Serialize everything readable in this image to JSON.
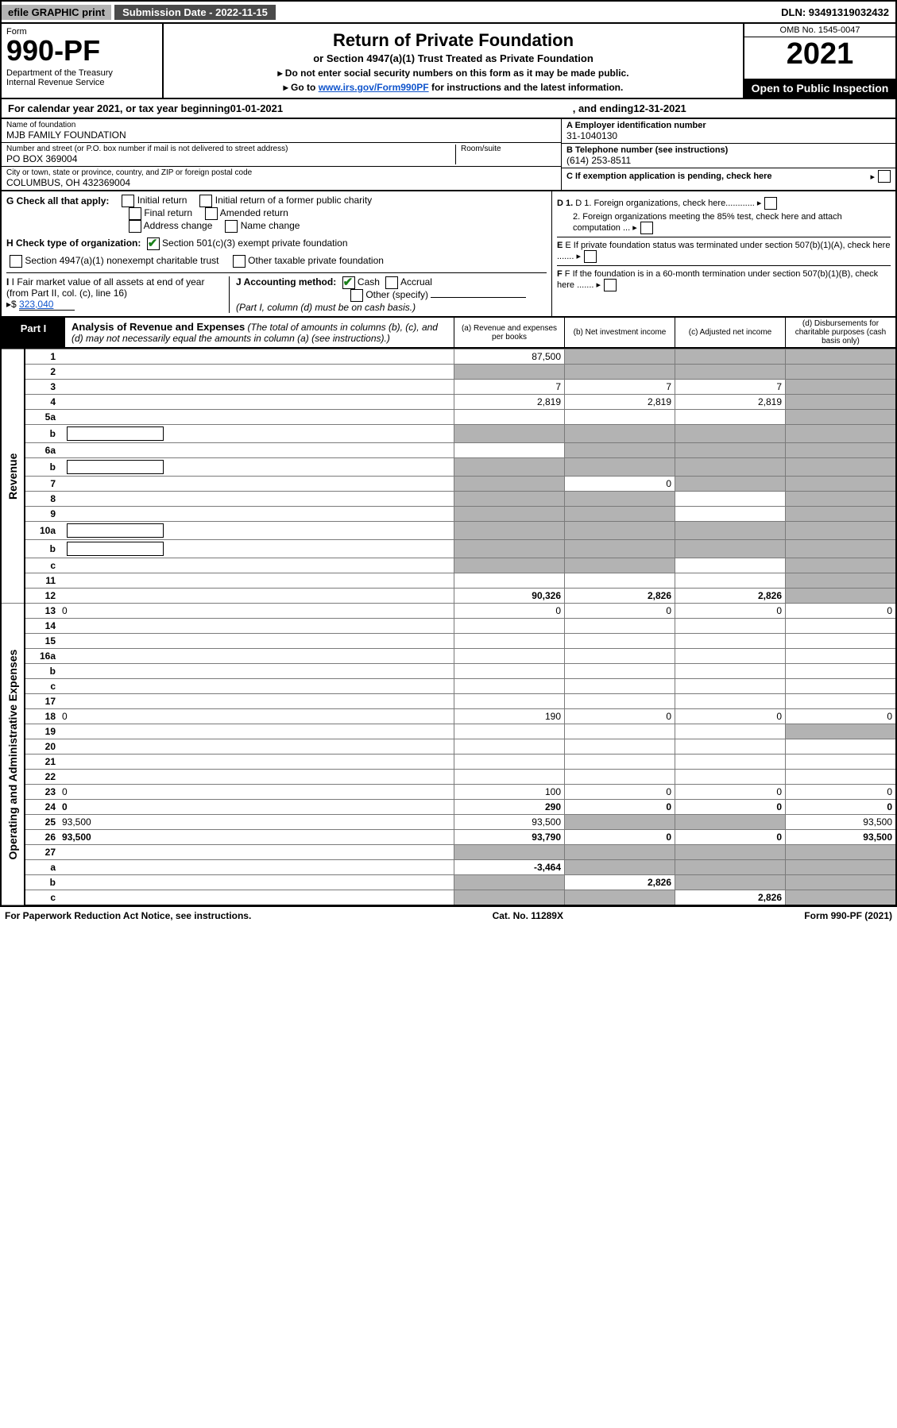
{
  "topbar": {
    "efile": "efile GRAPHIC print",
    "submission": "Submission Date - 2022-11-15",
    "dln": "DLN: 93491319032432"
  },
  "header": {
    "form_label": "Form",
    "form_number": "990-PF",
    "dept": "Department of the Treasury\nInternal Revenue Service",
    "title": "Return of Private Foundation",
    "subtitle": "or Section 4947(a)(1) Trust Treated as Private Foundation",
    "instr1": "▸ Do not enter social security numbers on this form as it may be made public.",
    "instr2_pre": "▸ Go to ",
    "instr2_link": "www.irs.gov/Form990PF",
    "instr2_post": " for instructions and the latest information.",
    "omb": "OMB No. 1545-0047",
    "year": "2021",
    "otp": "Open to Public Inspection"
  },
  "calendar": {
    "pre": "For calendar year 2021, or tax year beginning ",
    "begin": "01-01-2021",
    "mid": " , and ending ",
    "end": "12-31-2021"
  },
  "id": {
    "name_label": "Name of foundation",
    "name": "MJB FAMILY FOUNDATION",
    "addr_label": "Number and street (or P.O. box number if mail is not delivered to street address)",
    "addr": "PO BOX 369004",
    "room_label": "Room/suite",
    "room": "",
    "city_label": "City or town, state or province, country, and ZIP or foreign postal code",
    "city": "COLUMBUS, OH  432369004",
    "a_label": "A Employer identification number",
    "a_val": "31-1040130",
    "b_label": "B Telephone number (see instructions)",
    "b_val": "(614) 253-8511",
    "c_label": "C If exemption application is pending, check here"
  },
  "checks": {
    "g": "G Check all that apply:",
    "g_items": [
      "Initial return",
      "Initial return of a former public charity",
      "Final return",
      "Amended return",
      "Address change",
      "Name change"
    ],
    "h": "H Check type of organization:",
    "h1": "Section 501(c)(3) exempt private foundation",
    "h2": "Section 4947(a)(1) nonexempt charitable trust",
    "h3": "Other taxable private foundation",
    "i_label": "I Fair market value of all assets at end of year (from Part II, col. (c), line 16)",
    "i_arrow": "▸$",
    "i_val": "323,040",
    "j_label": "J Accounting method:",
    "j_cash": "Cash",
    "j_accrual": "Accrual",
    "j_other": "Other (specify)",
    "j_note": "(Part I, column (d) must be on cash basis.)",
    "d1": "D 1. Foreign organizations, check here............",
    "d2": "2. Foreign organizations meeting the 85% test, check here and attach computation ...",
    "e": "E  If private foundation status was terminated under section 507(b)(1)(A), check here .......",
    "f": "F  If the foundation is in a 60-month termination under section 507(b)(1)(B), check here ......."
  },
  "part1": {
    "tag": "Part I",
    "title": "Analysis of Revenue and Expenses",
    "title_note": " (The total of amounts in columns (b), (c), and (d) may not necessarily equal the amounts in column (a) (see instructions).)",
    "col_a": "(a) Revenue and expenses per books",
    "col_b": "(b) Net investment income",
    "col_c": "(c) Adjusted net income",
    "col_d": "(d) Disbursements for charitable purposes (cash basis only)",
    "side_rev": "Revenue",
    "side_exp": "Operating and Administrative Expenses"
  },
  "rows": {
    "r1": {
      "n": "1",
      "d": "",
      "a": "87,500",
      "b": "",
      "c": "",
      "sb": true,
      "sc": true,
      "sd": true
    },
    "r2": {
      "n": "2",
      "d": "",
      "a": "",
      "b": "",
      "c": "",
      "sa": true,
      "sb": true,
      "sc": true,
      "sd": true
    },
    "r3": {
      "n": "3",
      "d": "",
      "a": "7",
      "b": "7",
      "c": "7",
      "sd": true
    },
    "r4": {
      "n": "4",
      "d": "",
      "a": "2,819",
      "b": "2,819",
      "c": "2,819",
      "sd": true
    },
    "r5a": {
      "n": "5a",
      "d": "",
      "a": "",
      "b": "",
      "c": "",
      "sd": true
    },
    "r5b": {
      "n": "b",
      "d": "",
      "a": "",
      "b": "",
      "c": "",
      "sa": true,
      "sb": true,
      "sc": true,
      "sd": true,
      "inl": true
    },
    "r6a": {
      "n": "6a",
      "d": "",
      "a": "",
      "b": "",
      "c": "",
      "sb": true,
      "sc": true,
      "sd": true
    },
    "r6b": {
      "n": "b",
      "d": "",
      "a": "",
      "b": "",
      "c": "",
      "sa": true,
      "sb": true,
      "sc": true,
      "sd": true,
      "inl": true
    },
    "r7": {
      "n": "7",
      "d": "",
      "a": "",
      "b": "0",
      "c": "",
      "sa": true,
      "sc": true,
      "sd": true
    },
    "r8": {
      "n": "8",
      "d": "",
      "a": "",
      "b": "",
      "c": "",
      "sa": true,
      "sb": true,
      "sd": true
    },
    "r9": {
      "n": "9",
      "d": "",
      "a": "",
      "b": "",
      "c": "",
      "sa": true,
      "sb": true,
      "sd": true
    },
    "r10a": {
      "n": "10a",
      "d": "",
      "a": "",
      "b": "",
      "c": "",
      "sa": true,
      "sb": true,
      "sc": true,
      "sd": true,
      "inl": true
    },
    "r10b": {
      "n": "b",
      "d": "",
      "a": "",
      "b": "",
      "c": "",
      "sa": true,
      "sb": true,
      "sc": true,
      "sd": true,
      "inl": true
    },
    "r10c": {
      "n": "c",
      "d": "",
      "a": "",
      "b": "",
      "c": "",
      "sa": true,
      "sb": true,
      "sd": true
    },
    "r11": {
      "n": "11",
      "d": "",
      "a": "",
      "b": "",
      "c": "",
      "sd": true
    },
    "r12": {
      "n": "12",
      "d": "",
      "a": "90,326",
      "b": "2,826",
      "c": "2,826",
      "bold": true,
      "sd": true
    },
    "r13": {
      "n": "13",
      "d": "0",
      "a": "0",
      "b": "0",
      "c": "0"
    },
    "r14": {
      "n": "14",
      "d": "",
      "a": "",
      "b": "",
      "c": ""
    },
    "r15": {
      "n": "15",
      "d": "",
      "a": "",
      "b": "",
      "c": ""
    },
    "r16a": {
      "n": "16a",
      "d": "",
      "a": "",
      "b": "",
      "c": ""
    },
    "r16b": {
      "n": "b",
      "d": "",
      "a": "",
      "b": "",
      "c": ""
    },
    "r16c": {
      "n": "c",
      "d": "",
      "a": "",
      "b": "",
      "c": ""
    },
    "r17": {
      "n": "17",
      "d": "",
      "a": "",
      "b": "",
      "c": ""
    },
    "r18": {
      "n": "18",
      "d": "0",
      "a": "190",
      "b": "0",
      "c": "0"
    },
    "r19": {
      "n": "19",
      "d": "",
      "a": "",
      "b": "",
      "c": "",
      "sd": true
    },
    "r20": {
      "n": "20",
      "d": "",
      "a": "",
      "b": "",
      "c": ""
    },
    "r21": {
      "n": "21",
      "d": "",
      "a": "",
      "b": "",
      "c": ""
    },
    "r22": {
      "n": "22",
      "d": "",
      "a": "",
      "b": "",
      "c": ""
    },
    "r23": {
      "n": "23",
      "d": "0",
      "a": "100",
      "b": "0",
      "c": "0"
    },
    "r24": {
      "n": "24",
      "d": "0",
      "a": "290",
      "b": "0",
      "c": "0",
      "bold": true
    },
    "r25": {
      "n": "25",
      "d": "93,500",
      "a": "93,500",
      "b": "",
      "c": "",
      "sb": true,
      "sc": true
    },
    "r26": {
      "n": "26",
      "d": "93,500",
      "a": "93,790",
      "b": "0",
      "c": "0",
      "bold": true
    },
    "r27": {
      "n": "27",
      "d": "",
      "a": "",
      "b": "",
      "c": "",
      "sa": true,
      "sb": true,
      "sc": true,
      "sd": true
    },
    "r27a": {
      "n": "a",
      "d": "",
      "a": "-3,464",
      "b": "",
      "c": "",
      "bold": true,
      "sb": true,
      "sc": true,
      "sd": true
    },
    "r27b": {
      "n": "b",
      "d": "",
      "a": "",
      "b": "2,826",
      "c": "",
      "bold": true,
      "sa": true,
      "sc": true,
      "sd": true
    },
    "r27c": {
      "n": "c",
      "d": "",
      "a": "",
      "b": "",
      "c": "2,826",
      "bold": true,
      "sa": true,
      "sb": true,
      "sd": true
    }
  },
  "footer": {
    "left": "For Paperwork Reduction Act Notice, see instructions.",
    "mid": "Cat. No. 11289X",
    "right": "Form 990-PF (2021)"
  },
  "colors": {
    "shade": "#b3b3b3",
    "link": "#1155cc",
    "check": "#1a7f1a"
  },
  "revenue_rows": [
    "r1",
    "r2",
    "r3",
    "r4",
    "r5a",
    "r5b",
    "r6a",
    "r6b",
    "r7",
    "r8",
    "r9",
    "r10a",
    "r10b",
    "r10c",
    "r11",
    "r12"
  ],
  "expense_rows": [
    "r13",
    "r14",
    "r15",
    "r16a",
    "r16b",
    "r16c",
    "r17",
    "r18",
    "r19",
    "r20",
    "r21",
    "r22",
    "r23",
    "r24",
    "r25",
    "r26",
    "r27",
    "r27a",
    "r27b",
    "r27c"
  ]
}
